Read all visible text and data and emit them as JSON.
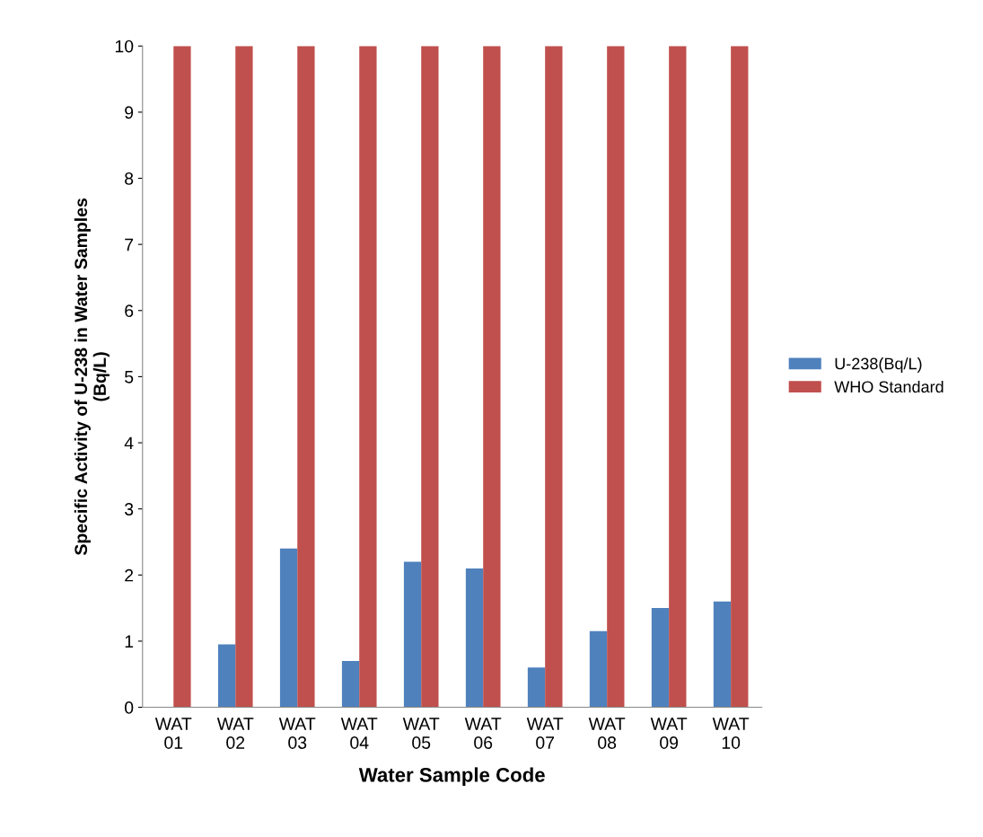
{
  "chart_data": {
    "type": "bar",
    "xlabel": "Water Sample Code",
    "ylabel": "Specific Activity of U-238 in Water Samples\n(Bq/L)",
    "categories": [
      "WAT\n01",
      "WAT\n02",
      "WAT\n03",
      "WAT\n04",
      "WAT\n05",
      "WAT\n06",
      "WAT\n07",
      "WAT\n08",
      "WAT\n09",
      "WAT\n10"
    ],
    "series": [
      {
        "name": "U-238(Bq/L)",
        "color": "#4f81bd",
        "values": [
          0,
          0.95,
          2.4,
          0.7,
          2.2,
          2.1,
          0.6,
          1.15,
          1.5,
          1.6
        ]
      },
      {
        "name": "WHO Standard",
        "color": "#c0504d",
        "values": [
          10,
          10,
          10,
          10,
          10,
          10,
          10,
          10,
          10,
          10
        ]
      }
    ],
    "ylim": [
      0,
      10
    ],
    "yticks": [
      0,
      1,
      2,
      3,
      4,
      5,
      6,
      7,
      8,
      9,
      10
    ],
    "grid": false,
    "legend": "right"
  }
}
